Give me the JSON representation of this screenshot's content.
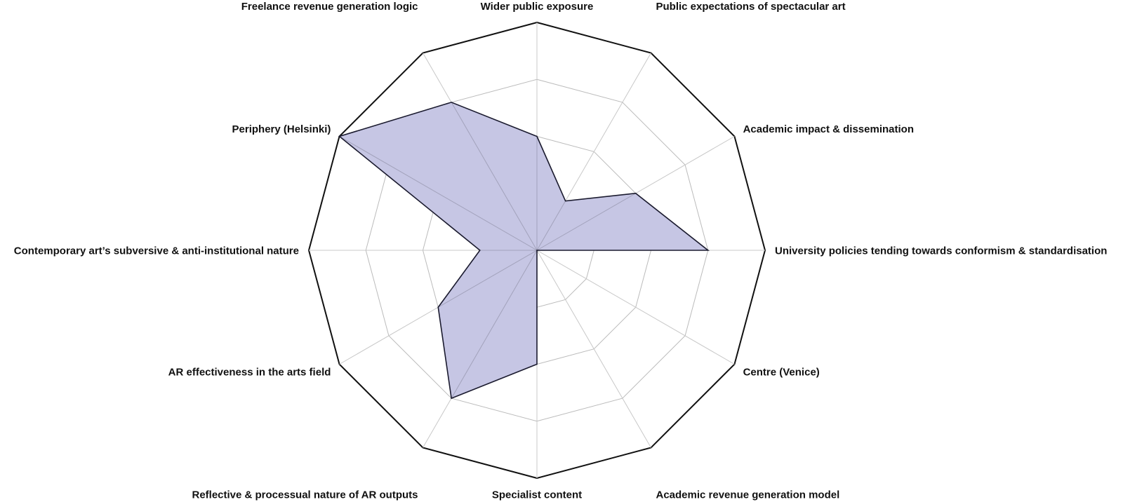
{
  "chart_data": {
    "type": "radar",
    "title": "",
    "axes": [
      "Wider public exposure",
      "Public expectations of spectacular art",
      "Academic impact & dissemination",
      "University policies tending towards conformism & standardisation",
      "Centre (Venice)",
      "Academic revenue generation model",
      "Specialist content",
      "Reflective & processual nature of AR outputs",
      "AR effectiveness in the arts field",
      "Contemporary art’s subversive & anti-institutional nature",
      "Periphery (Helsinki)",
      "Freelance revenue generation logic"
    ],
    "range": [
      0,
      4
    ],
    "rings": [
      1,
      2,
      3,
      4
    ],
    "series": [
      {
        "values": [
          2,
          1,
          2,
          3,
          0,
          0,
          2,
          3,
          2,
          1,
          4,
          3
        ]
      }
    ],
    "colors": {
      "fill": "#c6c6e4",
      "stroke": "#1a1a2e",
      "outer_ring": "#111111",
      "grid": "#bbbbbb",
      "spoke": "#c8c8c8",
      "inner_spoke": "#8a8aa0"
    }
  }
}
